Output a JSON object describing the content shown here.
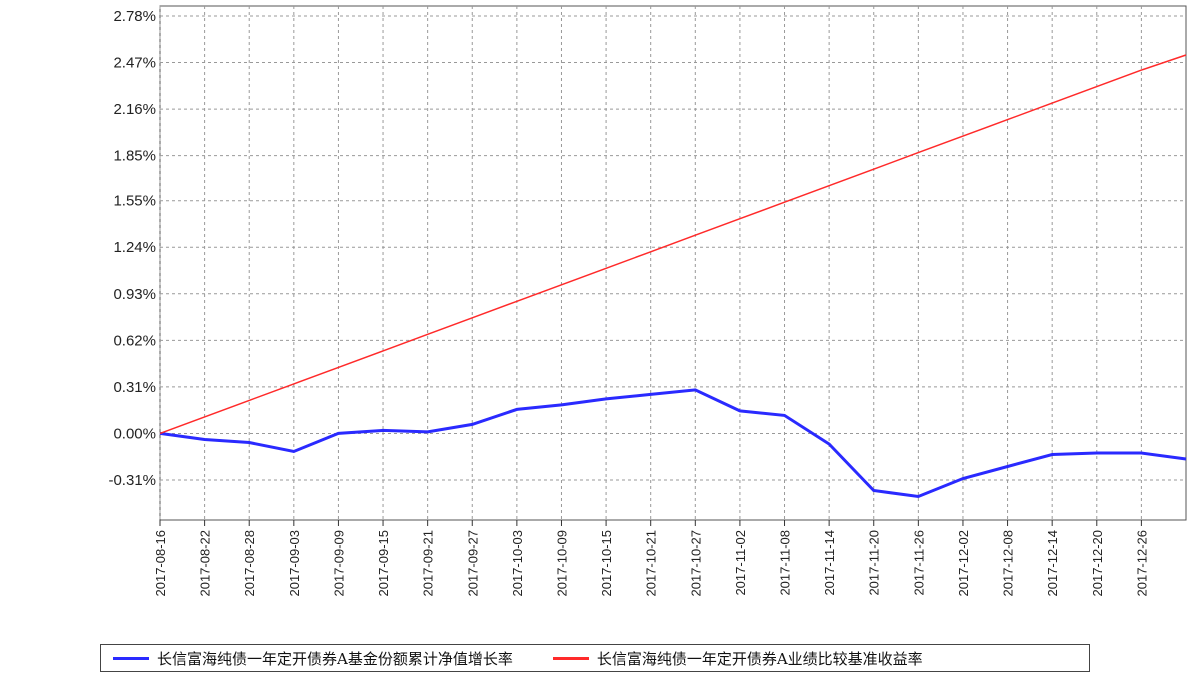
{
  "chart_data": {
    "type": "line",
    "x": [
      "2017-08-16",
      "2017-08-22",
      "2017-08-28",
      "2017-09-03",
      "2017-09-09",
      "2017-09-15",
      "2017-09-21",
      "2017-09-27",
      "2017-10-03",
      "2017-10-09",
      "2017-10-15",
      "2017-10-21",
      "2017-10-27",
      "2017-11-02",
      "2017-11-08",
      "2017-11-14",
      "2017-11-20",
      "2017-11-26",
      "2017-12-02",
      "2017-12-08",
      "2017-12-14",
      "2017-12-20",
      "2017-12-26",
      "2017-12-31"
    ],
    "x_tick_labels": [
      "2017-08-16",
      "2017-08-22",
      "2017-08-28",
      "2017-09-03",
      "2017-09-09",
      "2017-09-15",
      "2017-09-21",
      "2017-09-27",
      "2017-10-03",
      "2017-10-09",
      "2017-10-15",
      "2017-10-21",
      "2017-10-27",
      "2017-11-02",
      "2017-11-08",
      "2017-11-14",
      "2017-11-20",
      "2017-11-26",
      "2017-12-02",
      "2017-12-08",
      "2017-12-14",
      "2017-12-20",
      "2017-12-26"
    ],
    "y_tick_labels": [
      "2.78%",
      "2.47%",
      "2.16%",
      "1.85%",
      "1.55%",
      "1.24%",
      "0.93%",
      "0.62%",
      "0.31%",
      "0.00%",
      "-0.31%"
    ],
    "y_ticks": [
      2.78,
      2.47,
      2.16,
      1.85,
      1.55,
      1.24,
      0.93,
      0.62,
      0.31,
      0.0,
      -0.31
    ],
    "ylim": [
      -0.62,
      2.78
    ],
    "series": [
      {
        "name": "长信富海纯债一年定开债券A基金份额累计净值增长率",
        "color": "#2a2aff",
        "values": [
          0.0,
          -0.04,
          -0.06,
          -0.12,
          0.0,
          0.02,
          0.01,
          0.06,
          0.16,
          0.19,
          0.23,
          0.26,
          0.29,
          0.15,
          0.12,
          -0.07,
          -0.38,
          -0.42,
          -0.3,
          -0.22,
          -0.14,
          -0.13,
          -0.13,
          -0.17
        ]
      },
      {
        "name": "长信富海纯债一年定开债券A业绩比较基准收益率",
        "color": "#ff2a2a",
        "values": [
          0.0,
          0.11,
          0.22,
          0.33,
          0.44,
          0.55,
          0.66,
          0.77,
          0.88,
          0.99,
          1.1,
          1.21,
          1.32,
          1.43,
          1.54,
          1.65,
          1.76,
          1.87,
          1.98,
          2.09,
          2.2,
          2.31,
          2.42,
          2.52
        ]
      }
    ],
    "legend_position": "bottom",
    "grid": true
  }
}
